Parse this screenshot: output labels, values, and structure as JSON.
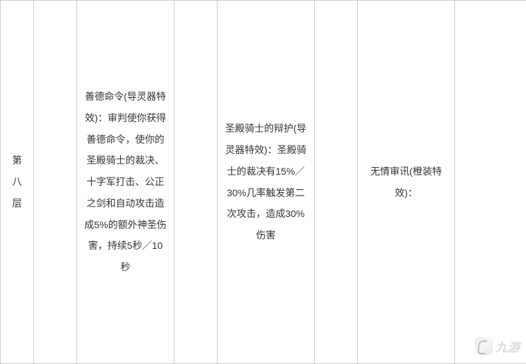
{
  "table": {
    "border_color": "#cccccc",
    "text_color": "#333333",
    "font_size": 14,
    "line_height": 2.2,
    "row_label": "第八层",
    "cells": {
      "c1": "",
      "c2": "善德命令(导灵器特效)：审判使你获得善德命令，使你的圣殿骑士的裁决、十字军打击、公正之剑和自动攻击造成5%的额外神圣伤害，持续5秒／10秒",
      "c3": "",
      "c4": "圣殿骑士的辩护(导灵器特效)：圣殿骑士的裁决有15%／30%几率触发第二次攻击，造成30%伤害",
      "c5": "",
      "c6": "无情审讯(橙装特效)：",
      "c7": ""
    }
  },
  "watermark": {
    "text": "九游"
  }
}
